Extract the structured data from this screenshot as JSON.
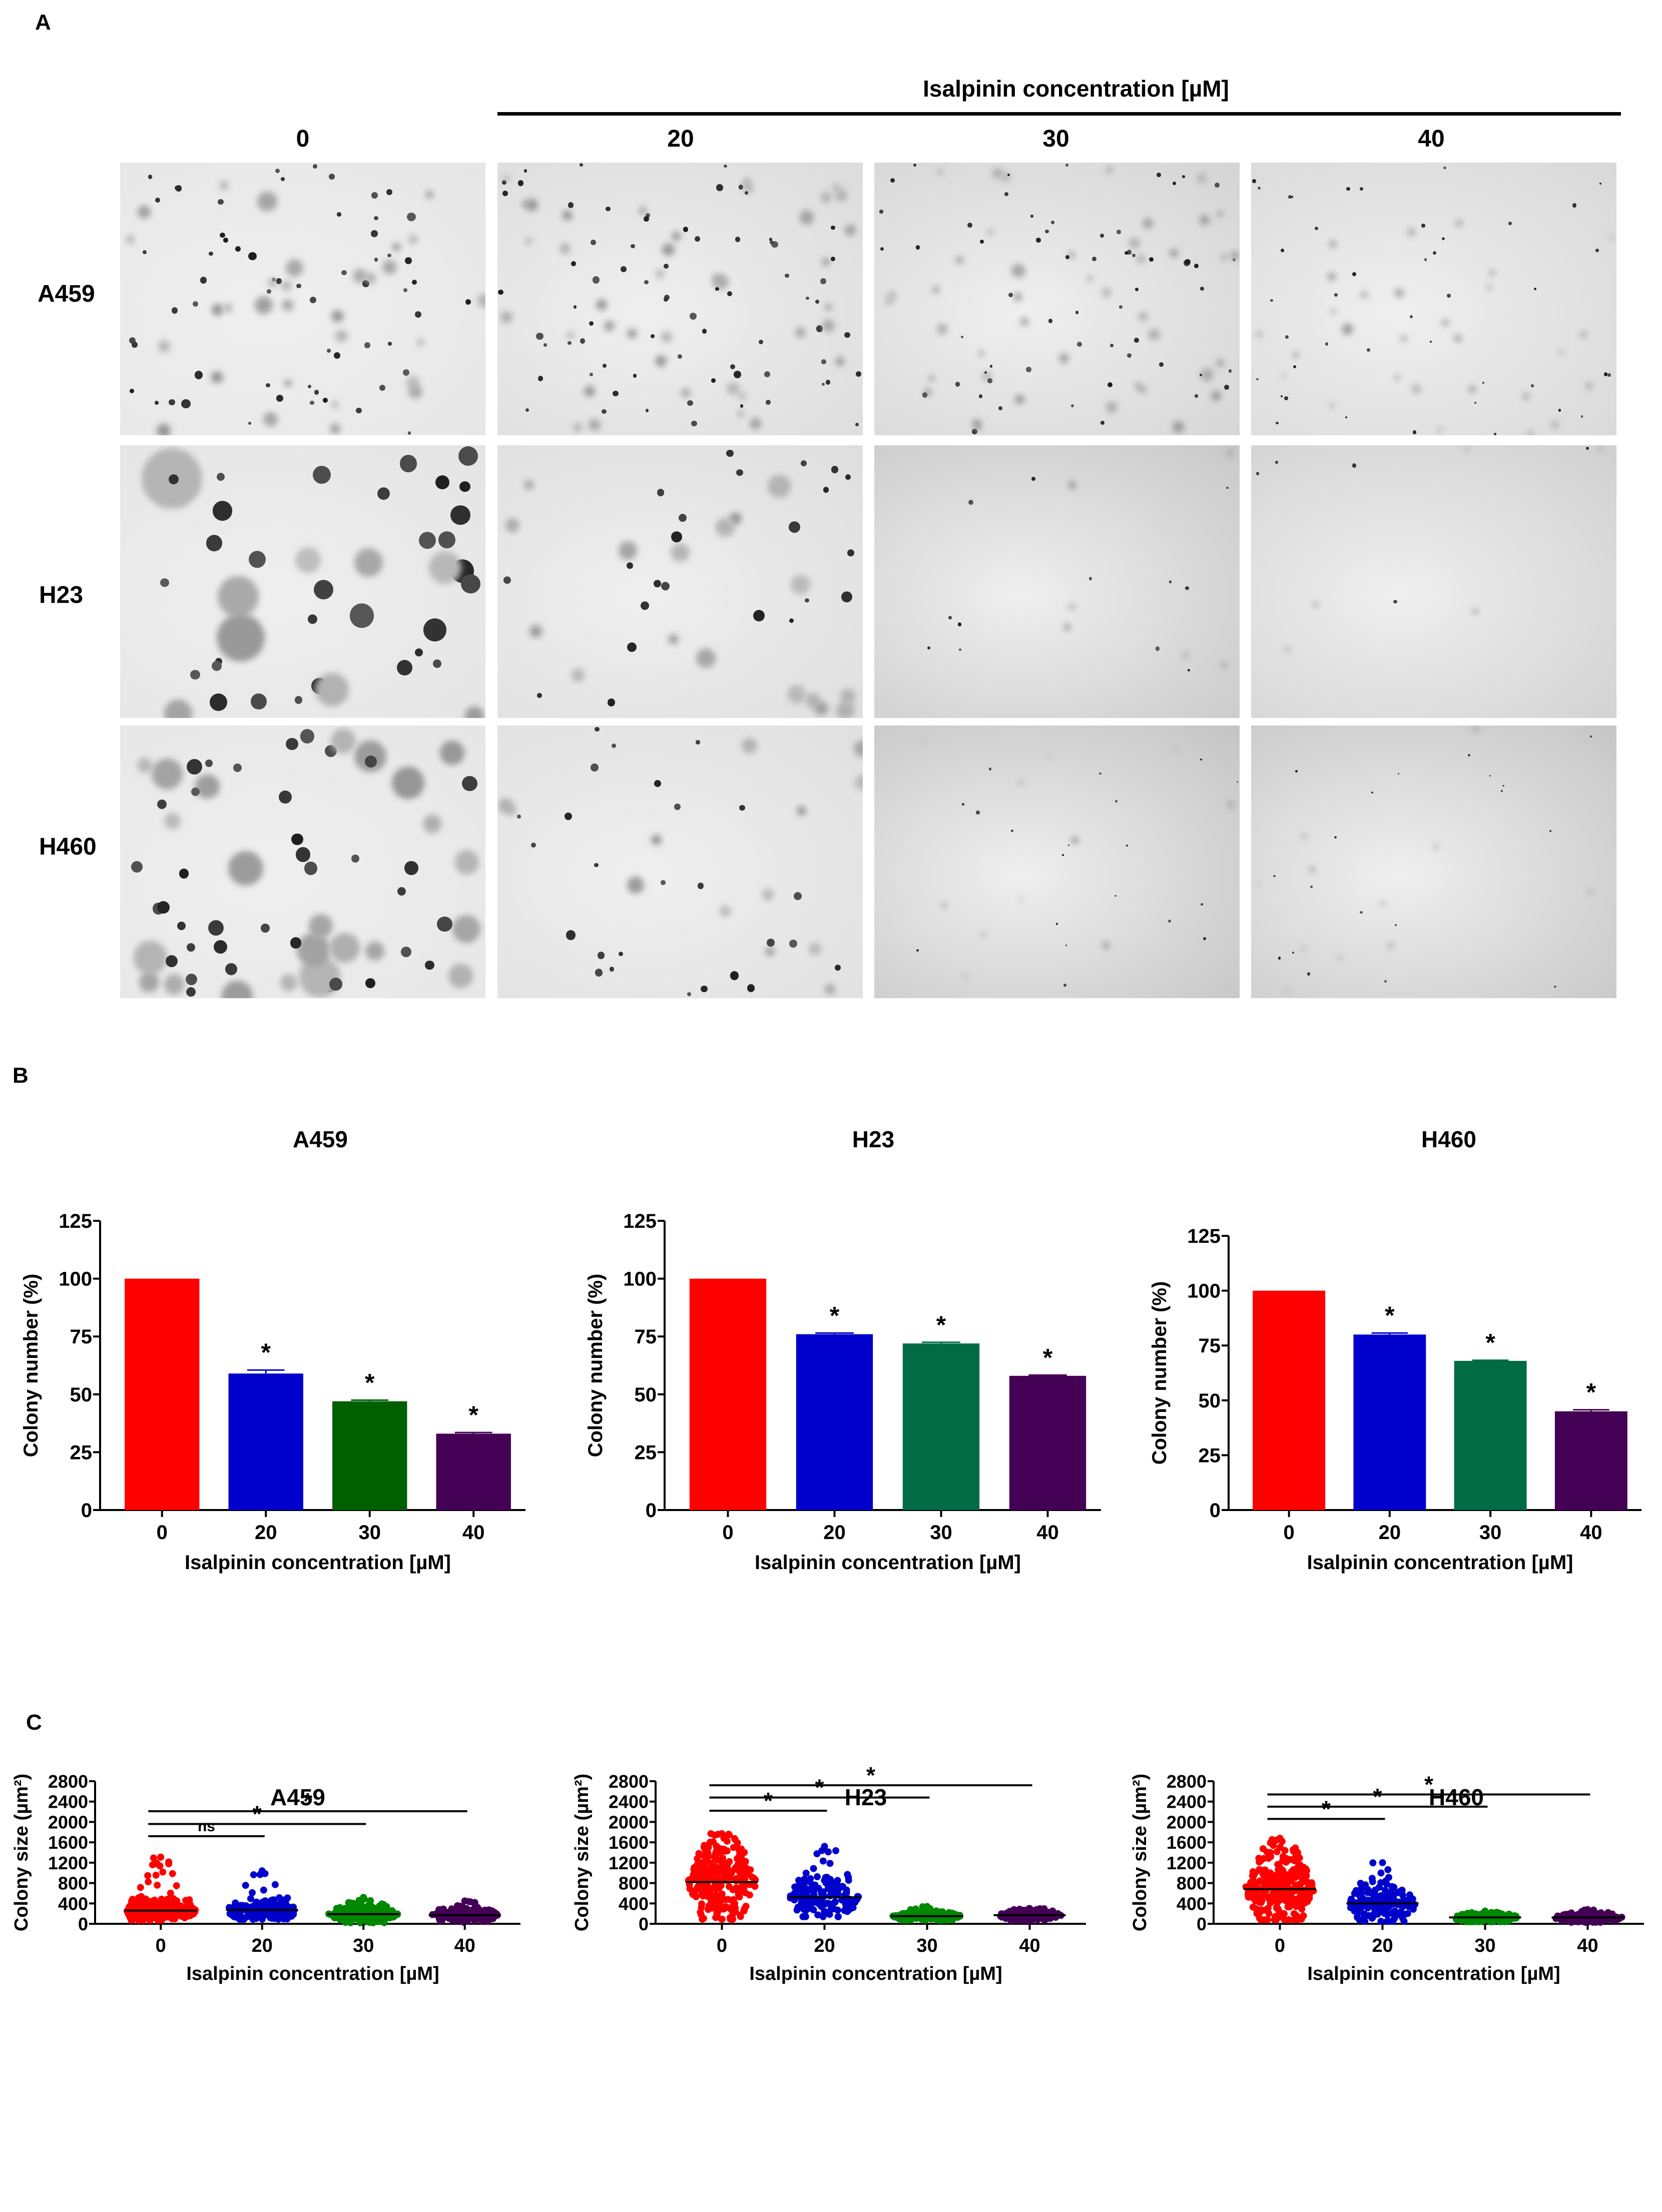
{
  "figure": {
    "panel_a": {
      "letter": "A",
      "header": "Isalpinin concentration [µM]",
      "columns": [
        "0",
        "20",
        "30",
        "40"
      ],
      "rows": [
        "A459",
        "H23",
        "H460"
      ]
    },
    "panel_b": {
      "letter": "B"
    },
    "panel_c": {
      "letter": "C"
    }
  },
  "chart_data": [
    {
      "id": "B-A459",
      "type": "bar",
      "title": "A459",
      "categories": [
        "0",
        "20",
        "30",
        "40"
      ],
      "values": [
        100,
        59,
        47,
        33
      ],
      "errors": [
        0,
        1.5,
        0.5,
        0.5
      ],
      "significance": [
        "",
        "*",
        "*",
        "*"
      ],
      "colors": [
        "#ff0000",
        "#0000cc",
        "#006000",
        "#440055"
      ],
      "xlabel": "Isalpinin concentration [µM]",
      "ylabel": "Colony number (%)",
      "ylim": [
        0,
        125
      ],
      "yticks": [
        0,
        25,
        50,
        75,
        100,
        125
      ]
    },
    {
      "id": "B-H23",
      "type": "bar",
      "title": "H23",
      "categories": [
        "0",
        "20",
        "30",
        "40"
      ],
      "values": [
        100,
        76,
        72,
        58
      ],
      "errors": [
        0,
        0.5,
        0.5,
        0.3
      ],
      "significance": [
        "",
        "*",
        "*",
        "*"
      ],
      "colors": [
        "#ff0000",
        "#0000cc",
        "#006b45",
        "#440055"
      ],
      "xlabel": "Isalpinin concentration [µM]",
      "ylabel": "Colony number (%)",
      "ylim": [
        0,
        125
      ],
      "yticks": [
        0,
        25,
        50,
        75,
        100,
        125
      ]
    },
    {
      "id": "B-H460",
      "type": "bar",
      "title": "H460",
      "categories": [
        "0",
        "20",
        "30",
        "40"
      ],
      "values": [
        100,
        80,
        68,
        45
      ],
      "errors": [
        0,
        0.7,
        0.3,
        0.7
      ],
      "significance": [
        "",
        "*",
        "*",
        "*"
      ],
      "colors": [
        "#ff0000",
        "#0000cc",
        "#006b45",
        "#440055"
      ],
      "xlabel": "Isalpinin concentration [µM]",
      "ylabel": "Colony number (%)",
      "ylim": [
        0,
        125
      ],
      "yticks": [
        0,
        25,
        50,
        75,
        100,
        125
      ]
    },
    {
      "id": "C-A459",
      "type": "scatter",
      "title": "A459",
      "categories": [
        "0",
        "20",
        "30",
        "40"
      ],
      "means": [
        260,
        270,
        190,
        170
      ],
      "ranges": [
        [
          70,
          1310
        ],
        [
          90,
          1040
        ],
        [
          20,
          520
        ],
        [
          30,
          450
        ]
      ],
      "colors": [
        "#ff0000",
        "#0000cc",
        "#008800",
        "#440055"
      ],
      "comparisons": [
        {
          "from": "0",
          "to": "20",
          "y": 1720,
          "label": "ns"
        },
        {
          "from": "0",
          "to": "30",
          "y": 1960,
          "label": "*"
        },
        {
          "from": "0",
          "to": "40",
          "y": 2210,
          "label": "*"
        }
      ],
      "xlabel": "Isalpinin concentration [µM]",
      "ylabel": "Colony size (µm²)",
      "ylim": [
        0,
        2800
      ],
      "yticks": [
        0,
        400,
        800,
        1200,
        1600,
        2000,
        2400,
        2800
      ]
    },
    {
      "id": "C-H23",
      "type": "scatter",
      "title": "H23",
      "categories": [
        "0",
        "20",
        "30",
        "40"
      ],
      "means": [
        820,
        520,
        150,
        170
      ],
      "ranges": [
        [
          90,
          1770
        ],
        [
          140,
          1520
        ],
        [
          70,
          340
        ],
        [
          60,
          300
        ]
      ],
      "colors": [
        "#ff0000",
        "#0000cc",
        "#008800",
        "#440055"
      ],
      "comparisons": [
        {
          "from": "0",
          "to": "20",
          "y": 2220,
          "label": "*"
        },
        {
          "from": "0",
          "to": "30",
          "y": 2480,
          "label": "*"
        },
        {
          "from": "0",
          "to": "40",
          "y": 2720,
          "label": "*"
        }
      ],
      "xlabel": "Isalpinin concentration [µM]",
      "ylabel": "Colony size (µm²)",
      "ylim": [
        0,
        2800
      ],
      "yticks": [
        0,
        400,
        800,
        1200,
        1600,
        2000,
        2400,
        2800
      ]
    },
    {
      "id": "C-H460",
      "type": "scatter",
      "title": "H460",
      "categories": [
        "0",
        "20",
        "30",
        "40"
      ],
      "means": [
        680,
        400,
        125,
        125
      ],
      "ranges": [
        [
          80,
          1680
        ],
        [
          50,
          1200
        ],
        [
          40,
          250
        ],
        [
          30,
          280
        ]
      ],
      "colors": [
        "#ff0000",
        "#0000cc",
        "#008800",
        "#440055"
      ],
      "comparisons": [
        {
          "from": "0",
          "to": "20",
          "y": 2060,
          "label": "*"
        },
        {
          "from": "0",
          "to": "30",
          "y": 2300,
          "label": "*"
        },
        {
          "from": "0",
          "to": "40",
          "y": 2540,
          "label": "*"
        }
      ],
      "xlabel": "Isalpinin concentration [µM]",
      "ylabel": "Colony size (µm²)",
      "ylim": [
        0,
        2800
      ],
      "yticks": [
        0,
        400,
        800,
        1200,
        1600,
        2000,
        2400,
        2800
      ]
    }
  ]
}
